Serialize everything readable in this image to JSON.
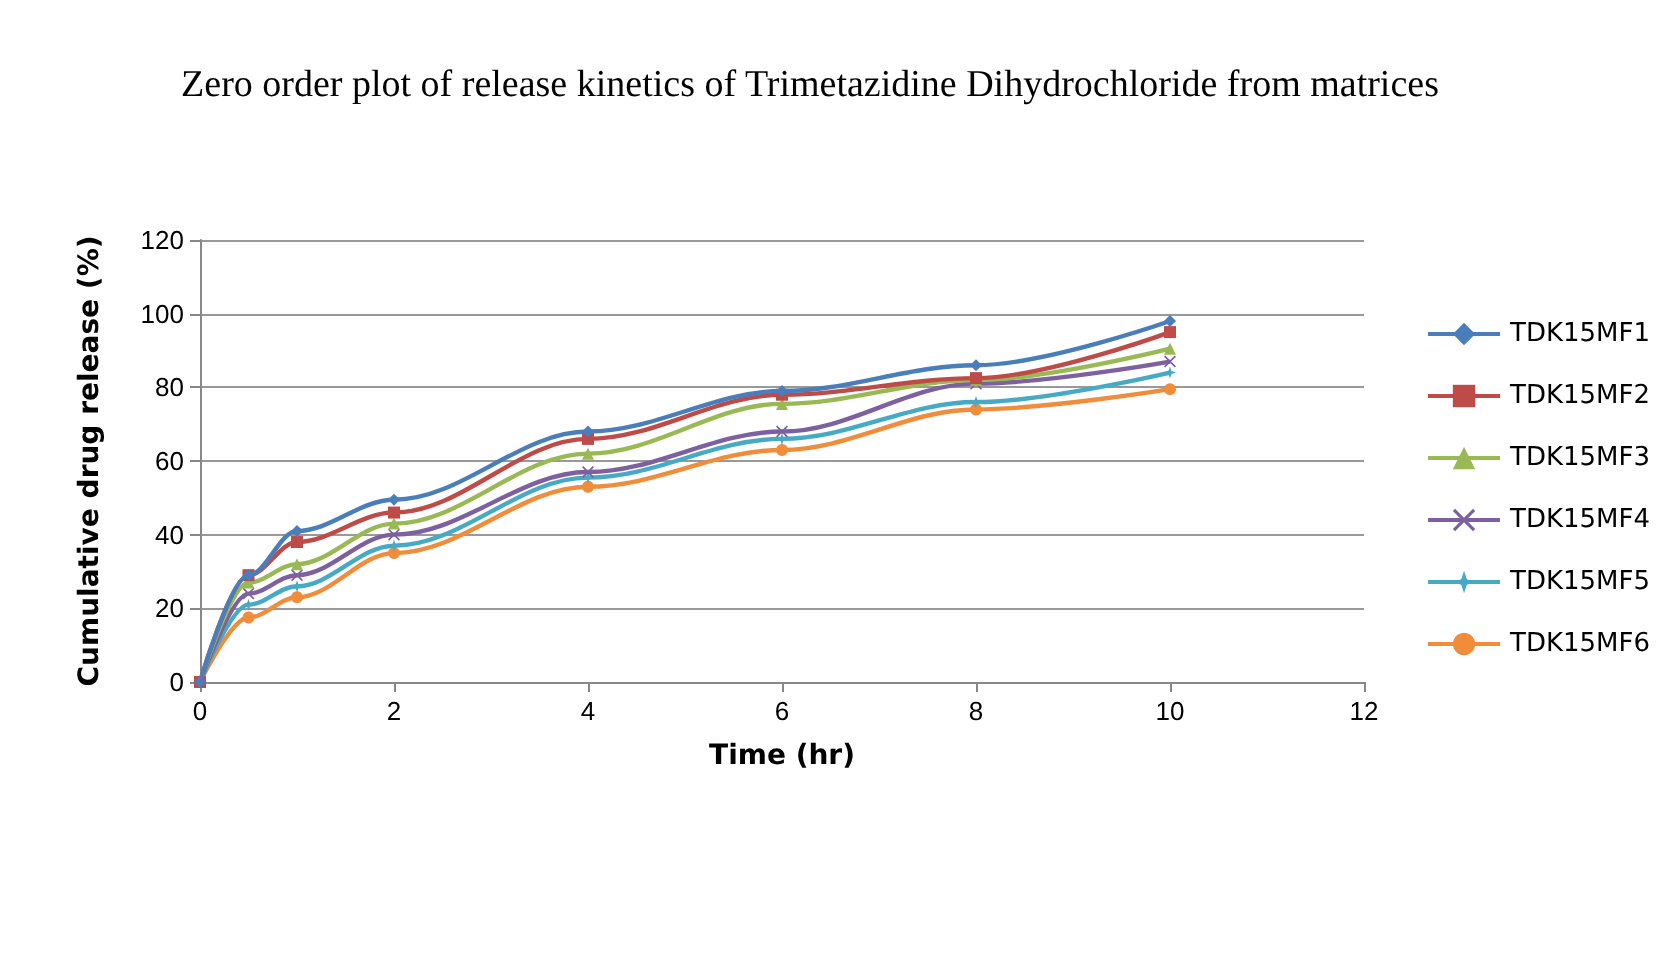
{
  "chart_data": {
    "type": "line",
    "title": "Zero order plot of release kinetics of Trimetazidine Dihydrochloride from matrices",
    "xlabel": "Time (hr)",
    "ylabel": "Cumulative drug release (%)",
    "x": [
      0,
      0.5,
      1,
      2,
      4,
      6,
      8,
      10
    ],
    "xlim": [
      0,
      12
    ],
    "xticks": [
      0,
      2,
      4,
      6,
      8,
      10,
      12
    ],
    "ylim": [
      0,
      120
    ],
    "yticks": [
      0,
      20,
      40,
      60,
      80,
      100,
      120
    ],
    "grid": "y",
    "legend": "right",
    "series": [
      {
        "name": "TDK15MF1",
        "color": "#4a7ebb",
        "marker": "diamond",
        "values": [
          0,
          29,
          41,
          49.5,
          68,
          79,
          86,
          98
        ]
      },
      {
        "name": "TDK15MF2",
        "color": "#be4b48",
        "marker": "square",
        "values": [
          0,
          29,
          38,
          46,
          66,
          78,
          82.5,
          95
        ]
      },
      {
        "name": "TDK15MF3",
        "color": "#98b954",
        "marker": "triangle",
        "values": [
          0,
          27,
          32,
          43,
          62,
          75.5,
          82,
          90.5
        ]
      },
      {
        "name": "TDK15MF4",
        "color": "#7d60a0",
        "marker": "cross",
        "values": [
          0,
          24,
          29,
          40,
          57,
          68,
          81,
          87
        ]
      },
      {
        "name": "TDK15MF5",
        "color": "#46aac5",
        "marker": "star",
        "values": [
          0,
          21,
          26,
          37,
          55.5,
          66,
          76,
          84
        ]
      },
      {
        "name": "TDK15MF6",
        "color": "#f08c3a",
        "marker": "circle",
        "values": [
          0,
          17.5,
          23,
          35,
          53,
          63,
          74,
          79.5
        ]
      }
    ]
  }
}
